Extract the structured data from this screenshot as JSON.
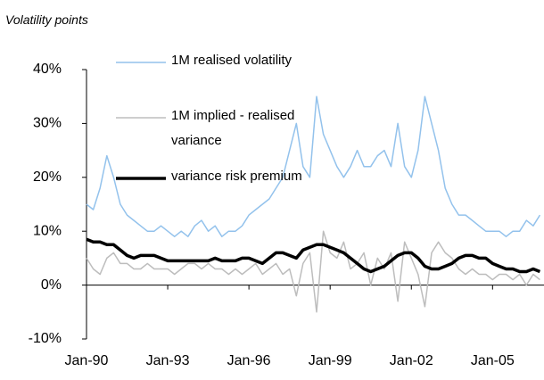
{
  "chart_data": {
    "type": "line",
    "subtitle": "Volatility points",
    "x": [
      1990,
      1990.25,
      1990.5,
      1990.75,
      1991,
      1991.25,
      1991.5,
      1991.75,
      1992,
      1992.25,
      1992.5,
      1992.75,
      1993,
      1993.25,
      1993.5,
      1993.75,
      1994,
      1994.25,
      1994.5,
      1994.75,
      1995,
      1995.25,
      1995.5,
      1995.75,
      1996,
      1996.25,
      1996.5,
      1996.75,
      1997,
      1997.25,
      1997.5,
      1997.75,
      1998,
      1998.25,
      1998.5,
      1998.75,
      1999,
      1999.25,
      1999.5,
      1999.75,
      2000,
      2000.25,
      2000.5,
      2000.75,
      2001,
      2001.25,
      2001.5,
      2001.75,
      2002,
      2002.25,
      2002.5,
      2002.75,
      2003,
      2003.25,
      2003.5,
      2003.75,
      2004,
      2004.25,
      2004.5,
      2004.75,
      2005,
      2005.25,
      2005.5,
      2005.75,
      2006,
      2006.25,
      2006.5,
      2006.75
    ],
    "series": [
      {
        "name": "1M realised volatility",
        "color": "#93c2ec",
        "values": [
          15,
          14,
          18,
          24,
          20,
          15,
          13,
          12,
          11,
          10,
          10,
          11,
          10,
          9,
          10,
          9,
          11,
          12,
          10,
          11,
          9,
          10,
          10,
          11,
          13,
          14,
          15,
          16,
          18,
          20,
          25,
          30,
          22,
          20,
          35,
          28,
          25,
          22,
          20,
          22,
          25,
          22,
          22,
          24,
          25,
          22,
          30,
          22,
          20,
          25,
          35,
          30,
          25,
          18,
          15,
          13,
          13,
          12,
          11,
          10,
          10,
          10,
          9,
          10,
          10,
          12,
          11,
          13
        ]
      },
      {
        "name": "1M implied - realised variance",
        "color": "#bdbdbd",
        "values": [
          5,
          3,
          2,
          5,
          6,
          4,
          4,
          3,
          3,
          4,
          3,
          3,
          3,
          2,
          3,
          4,
          4,
          3,
          4,
          3,
          3,
          2,
          3,
          2,
          3,
          4,
          2,
          3,
          4,
          2,
          3,
          -2,
          4,
          6,
          -5,
          10,
          6,
          5,
          8,
          3,
          4,
          6,
          0,
          5,
          3,
          6,
          -3,
          8,
          5,
          2,
          -4,
          6,
          8,
          6,
          5,
          3,
          2,
          3,
          2,
          2,
          1,
          2,
          2,
          1,
          2,
          0,
          2,
          1
        ]
      },
      {
        "name": "variance risk premium",
        "color": "#000000",
        "values": [
          8.5,
          8,
          8,
          7.5,
          7.5,
          6.5,
          5.5,
          5,
          5.5,
          5.5,
          5.5,
          5,
          4.5,
          4.5,
          4.5,
          4.5,
          4.5,
          4.5,
          4.5,
          5,
          4.5,
          4.5,
          4.5,
          5,
          5,
          4.5,
          4,
          5,
          6,
          6,
          5.5,
          5,
          6.5,
          7,
          7.5,
          7.5,
          7,
          6.5,
          6,
          5,
          4,
          3,
          2.5,
          3,
          3.5,
          4.5,
          5.5,
          6,
          6,
          5,
          3.5,
          3,
          3,
          3.5,
          4,
          5,
          5.5,
          5.5,
          5,
          5,
          4,
          3.5,
          3,
          3,
          2.5,
          2.5,
          3,
          2.5
        ]
      }
    ],
    "xlim": [
      1990,
      2006.9
    ],
    "xticks": [
      {
        "value": 1990,
        "label": "Jan-90"
      },
      {
        "value": 1993,
        "label": "Jan-93"
      },
      {
        "value": 1996,
        "label": "Jan-96"
      },
      {
        "value": 1999,
        "label": "Jan-99"
      },
      {
        "value": 2002,
        "label": "Jan-02"
      },
      {
        "value": 2005,
        "label": "Jan-05"
      }
    ],
    "ylim": [
      -10,
      40
    ],
    "yticks": [
      {
        "value": -10,
        "label": "-10%"
      },
      {
        "value": 0,
        "label": "0%"
      },
      {
        "value": 10,
        "label": "10%"
      },
      {
        "value": 20,
        "label": "20%"
      },
      {
        "value": 30,
        "label": "30%"
      },
      {
        "value": 40,
        "label": "40%"
      }
    ]
  }
}
